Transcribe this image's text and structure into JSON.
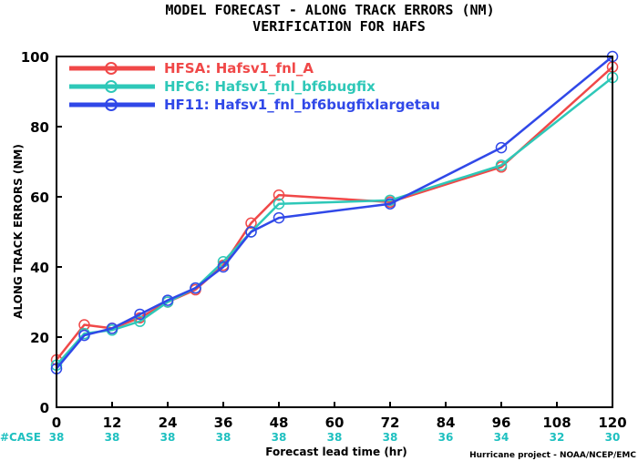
{
  "chart_data": {
    "type": "line",
    "title": "MODEL FORECAST - ALONG TRACK ERRORS (NM)",
    "subtitle": "VERIFICATION FOR HAFS",
    "xlabel": "Forecast lead time (hr)",
    "ylabel": "ALONG TRACK ERRORS (NM)",
    "xlim": [
      0,
      120
    ],
    "ylim": [
      0,
      100
    ],
    "xticks": [
      0,
      12,
      24,
      36,
      48,
      60,
      72,
      84,
      96,
      108,
      120
    ],
    "yticks": [
      0,
      20,
      40,
      60,
      80,
      100
    ],
    "grid": false,
    "legend_position": "top-left",
    "case_label": "#CASE",
    "case_counts": [
      {
        "x": 0,
        "label": "38"
      },
      {
        "x": 12,
        "label": "38"
      },
      {
        "x": 24,
        "label": "38"
      },
      {
        "x": 36,
        "label": "38"
      },
      {
        "x": 48,
        "label": "38"
      },
      {
        "x": 60,
        "label": "38"
      },
      {
        "x": 72,
        "label": "38"
      },
      {
        "x": 84,
        "label": "36"
      },
      {
        "x": 96,
        "label": "34"
      },
      {
        "x": 108,
        "label": "32"
      },
      {
        "x": 120,
        "label": "30"
      }
    ],
    "credit": "Hurricane project - NOAA/NCEP/EMC",
    "series": [
      {
        "name": "HFSA: Hafsv1_fnl_A",
        "color": "#f04848",
        "x": [
          0,
          6,
          12,
          18,
          24,
          30,
          36,
          42,
          48,
          72,
          96,
          120
        ],
        "y": [
          13.5,
          23.5,
          22.5,
          25.5,
          30.0,
          33.5,
          40.5,
          52.5,
          60.5,
          58.5,
          68.5,
          97.0
        ]
      },
      {
        "name": "HFC6: Hafsv1_fnl_bf6bugfix",
        "color": "#2ec8b8",
        "x": [
          0,
          6,
          12,
          18,
          24,
          30,
          36,
          42,
          48,
          72,
          96,
          120
        ],
        "y": [
          12.0,
          21.0,
          22.0,
          24.5,
          30.0,
          34.0,
          41.5,
          50.0,
          58.0,
          59.0,
          69.0,
          94.0
        ]
      },
      {
        "name": "HF11: Hafsv1_fnl_bf6bugfixlargetau",
        "color": "#3048e8",
        "x": [
          0,
          6,
          12,
          18,
          24,
          30,
          36,
          42,
          48,
          72,
          96,
          120
        ],
        "y": [
          11.0,
          20.5,
          22.5,
          26.5,
          30.5,
          34.0,
          40.0,
          50.0,
          54.0,
          58.0,
          74.0,
          100.0
        ]
      }
    ]
  }
}
